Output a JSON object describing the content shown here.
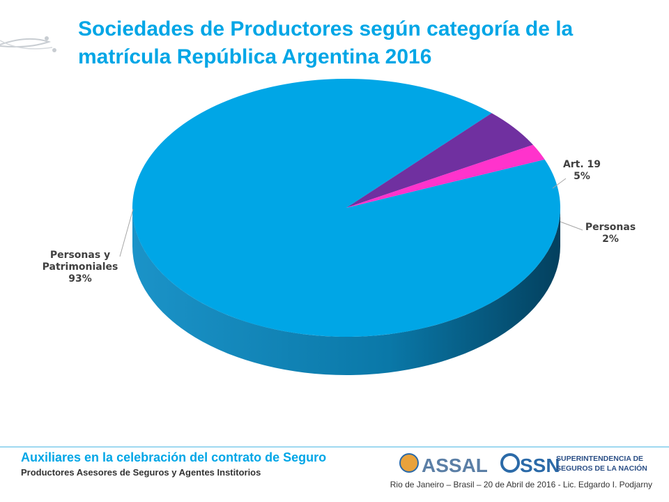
{
  "title": "Sociedades de Productores según categoría de la matrícula República Argentina 2016",
  "chart_data": {
    "type": "pie3d",
    "categories": [
      "Personas y Patrimoniales",
      "Art. 19",
      "Personas"
    ],
    "values": [
      93,
      5,
      2
    ],
    "value_labels": [
      "93%",
      "5%",
      "2%"
    ],
    "colors": [
      "#00a6e6",
      "#7030a0",
      "#ff33cc"
    ]
  },
  "footer": {
    "heading": "Auxiliares en la celebración del contrato de Seguro",
    "subheading": "Productores Asesores de Seguros y Agentes Institorios",
    "credit": "Rio de Janeiro – Brasil – 20 de Abril de 2016 - Lic. Edgardo I. Podjarny",
    "logo_assal": "ASSAL",
    "logo_ssn": "SSN",
    "logo_ssn_line1": "SUPERINTENDENCIA DE",
    "logo_ssn_line2": "SEGUROS DE LA NACIÓN"
  }
}
